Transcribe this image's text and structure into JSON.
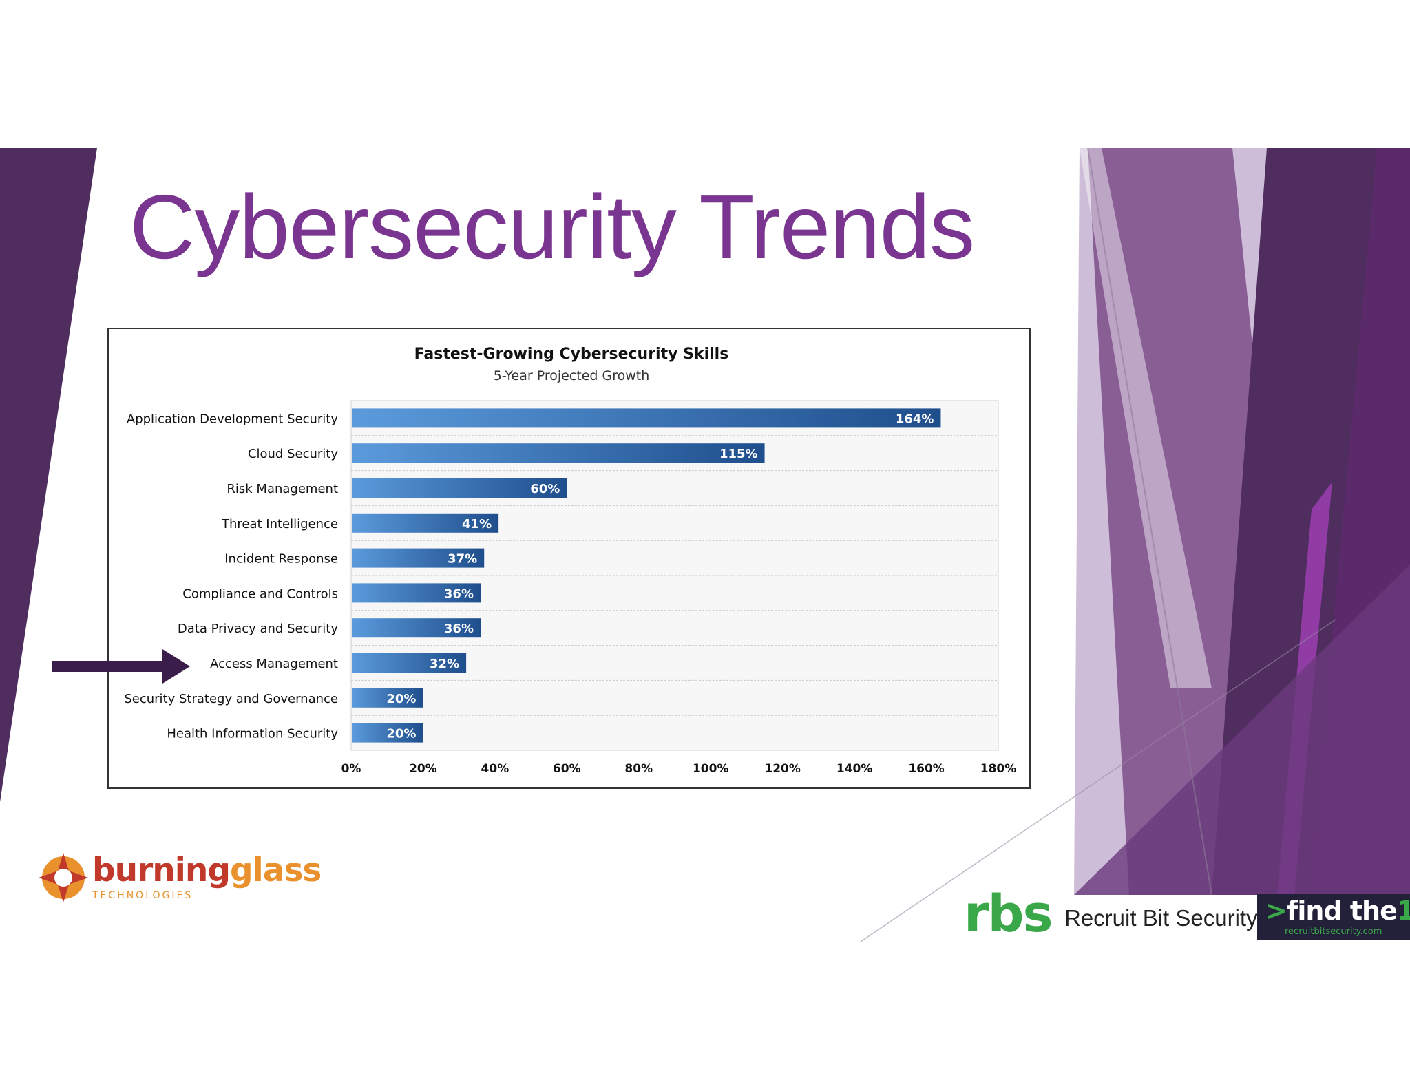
{
  "slide": {
    "title": "Cybersecurity Trends",
    "title_color": "#7a3590"
  },
  "colors": {
    "purple_dark": "#4f2d5f",
    "purple_mid": "#7b4d8a",
    "purple_light": "#b89bc7",
    "purple_bright": "#9b3fb0",
    "arrow": "#3a1d4a",
    "bar_dark": "#1f4e8c",
    "bar_light": "#5b9bdc"
  },
  "chart_data": {
    "type": "bar",
    "orientation": "horizontal",
    "title": "Fastest-Growing Cybersecurity Skills",
    "subtitle": "5-Year Projected Growth",
    "categories": [
      "Application Development Security",
      "Cloud Security",
      "Risk Management",
      "Threat Intelligence",
      "Incident Response",
      "Compliance and Controls",
      "Data Privacy and Security",
      "Access Management",
      "Security Strategy and Governance",
      "Health Information Security"
    ],
    "values": [
      164,
      115,
      60,
      41,
      37,
      36,
      36,
      32,
      20,
      20
    ],
    "data_labels": [
      "164%",
      "115%",
      "60%",
      "41%",
      "37%",
      "36%",
      "36%",
      "32%",
      "20%",
      "20%"
    ],
    "xlim": [
      0,
      180
    ],
    "x_ticks": [
      "0%",
      "20%",
      "40%",
      "60%",
      "80%",
      "100%",
      "120%",
      "140%",
      "160%",
      "180%"
    ],
    "grid": true,
    "highlighted_category": "Access Management"
  },
  "logos": {
    "burning_glass_word_1": "burning",
    "burning_glass_word_2": "glass",
    "burning_glass_sub": "TECHNOLOGIES",
    "rbs_mark": "rbs",
    "rbs_name": "Recruit Bit Security",
    "find_prefix": ">",
    "find_text": "find the",
    "find_digit": "1",
    "find_url": "recruitbitsecurity.com",
    "rbs_green": "#3aa849",
    "bg_red": "#c0392b",
    "bg_orange": "#e8912d"
  }
}
